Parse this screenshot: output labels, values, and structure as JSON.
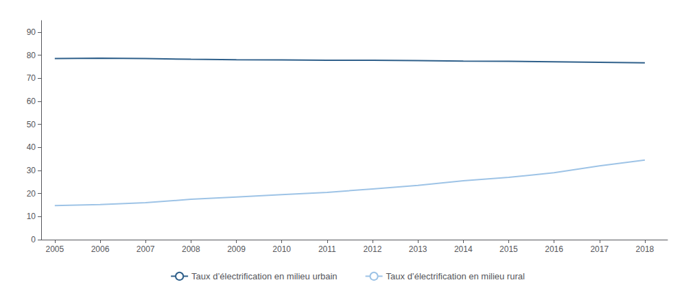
{
  "chart_data": {
    "type": "line",
    "x": [
      2005,
      2006,
      2007,
      2008,
      2009,
      2010,
      2011,
      2012,
      2013,
      2014,
      2015,
      2016,
      2017,
      2018
    ],
    "series": [
      {
        "name": "Taux d’électrification en milieu urbain",
        "color": "#2e5f8a",
        "values": [
          78.5,
          78.7,
          78.5,
          78.2,
          78.0,
          77.9,
          77.8,
          77.8,
          77.6,
          77.4,
          77.3,
          77.1,
          76.9,
          76.7
        ]
      },
      {
        "name": "Taux d’électrification en milieu rural",
        "color": "#9dc3e6",
        "values": [
          14.8,
          15.2,
          16.0,
          17.5,
          18.5,
          19.5,
          20.5,
          22.0,
          23.5,
          25.5,
          27.0,
          29.0,
          32.0,
          34.5
        ]
      }
    ],
    "xlim": [
      2004.7,
      2018.5
    ],
    "xticks": [
      2005,
      2006,
      2007,
      2008,
      2009,
      2010,
      2011,
      2012,
      2013,
      2014,
      2015,
      2016,
      2017,
      2018
    ],
    "ylim": [
      0,
      95
    ],
    "yticks": [
      0,
      10,
      20,
      30,
      40,
      50,
      60,
      70,
      80,
      90
    ],
    "grid": false,
    "legend": "bottom"
  }
}
